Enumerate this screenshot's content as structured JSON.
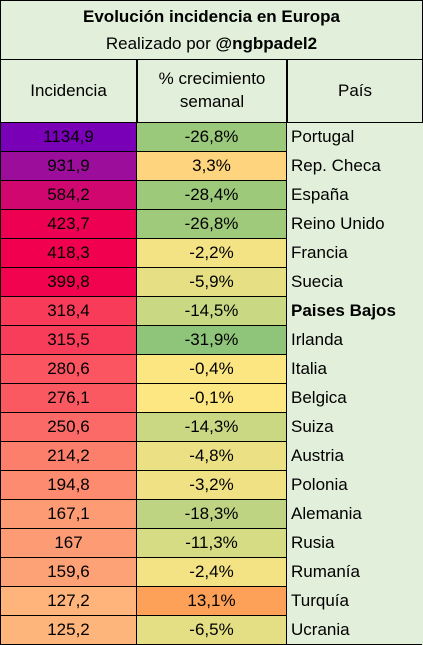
{
  "title": "Evolución incidencia en Europa",
  "subtitle_prefix": "Realizado por",
  "subtitle_handle": "@ngbpadel2",
  "headers": {
    "incidencia": "Incidencia",
    "crecimiento_line1": "% crecimiento",
    "crecimiento_line2": "semanal",
    "pais": "País"
  },
  "rows": [
    {
      "incidencia": "1134,9",
      "crecimiento": "-26,8%",
      "pais": "Portugal",
      "inc_color": "#7a00b8",
      "gro_color": "#9bc97b",
      "bold": false
    },
    {
      "incidencia": "931,9",
      "crecimiento": "3,3%",
      "pais": "Rep. Checa",
      "inc_color": "#9c0d9c",
      "gro_color": "#fed47f",
      "bold": false
    },
    {
      "incidencia": "584,2",
      "crecimiento": "-28,4%",
      "pais": "España",
      "inc_color": "#d0076e",
      "gro_color": "#9dc97a",
      "bold": false
    },
    {
      "incidencia": "423,7",
      "crecimiento": "-26,8%",
      "pais": "Reino Unido",
      "inc_color": "#ed0052",
      "gro_color": "#9fca7b",
      "bold": false
    },
    {
      "incidencia": "418,3",
      "crecimiento": "-2,2%",
      "pais": "Francia",
      "inc_color": "#f10050",
      "gro_color": "#f4e384",
      "bold": false
    },
    {
      "incidencia": "399,8",
      "crecimiento": "-5,9%",
      "pais": "Suecia",
      "inc_color": "#f2034f",
      "gro_color": "#e6df84",
      "bold": false
    },
    {
      "incidencia": "318,4",
      "crecimiento": "-14,5%",
      "pais": "Paises Bajos",
      "inc_color": "#f83b58",
      "gro_color": "#c9d882",
      "bold": true
    },
    {
      "incidencia": "315,5",
      "crecimiento": "-31,9%",
      "pais": "Irlanda",
      "inc_color": "#f83d5a",
      "gro_color": "#8fc57a",
      "bold": false
    },
    {
      "incidencia": "280,6",
      "crecimiento": "-0,4%",
      "pais": "Italia",
      "inc_color": "#fa5561",
      "gro_color": "#fbe682",
      "bold": false
    },
    {
      "incidencia": "276,1",
      "crecimiento": "-0,1%",
      "pais": "Belgica",
      "inc_color": "#fa5962",
      "gro_color": "#fde782",
      "bold": false
    },
    {
      "incidencia": "250,6",
      "crecimiento": "-14,3%",
      "pais": "Suiza",
      "inc_color": "#fb6a66",
      "gro_color": "#cad883",
      "bold": false
    },
    {
      "incidencia": "214,2",
      "crecimiento": "-4,8%",
      "pais": "Austria",
      "inc_color": "#fc7f6b",
      "gro_color": "#ebe084",
      "bold": false
    },
    {
      "incidencia": "194,8",
      "crecimiento": "-3,2%",
      "pais": "Polonia",
      "inc_color": "#fc8b6f",
      "gro_color": "#f0e284",
      "bold": false
    },
    {
      "incidencia": "167,1",
      "crecimiento": "-18,3%",
      "pais": "Alemania",
      "inc_color": "#fd9c74",
      "gro_color": "#bed482",
      "bold": false
    },
    {
      "incidencia": "167",
      "crecimiento": "-11,3%",
      "pais": "Rusia",
      "inc_color": "#fd9c74",
      "gro_color": "#d6dc84",
      "bold": false
    },
    {
      "incidencia": "159,6",
      "crecimiento": "-2,4%",
      "pais": "Rumanía",
      "inc_color": "#fda176",
      "gro_color": "#f3e384",
      "bold": false
    },
    {
      "incidencia": "127,2",
      "crecimiento": "13,1%",
      "pais": "Turquía",
      "inc_color": "#feb47b",
      "gro_color": "#fea158",
      "bold": false
    },
    {
      "incidencia": "125,2",
      "crecimiento": "-6,5%",
      "pais": "Ucrania",
      "inc_color": "#feb57c",
      "gro_color": "#e4df84",
      "bold": false
    }
  ],
  "colors": {
    "header_bg": "#e2efda",
    "pais_bg": "#e2efda"
  }
}
